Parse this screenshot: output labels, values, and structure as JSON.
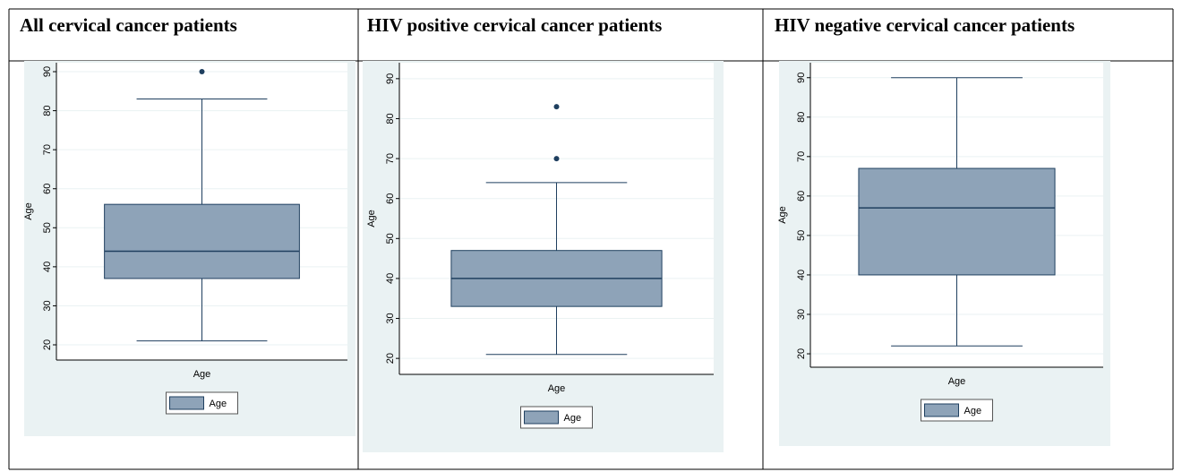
{
  "chart_data": [
    {
      "type": "box",
      "title": "All cervical cancer patients",
      "ylabel": "Age",
      "categories": [
        "Age"
      ],
      "ylim": [
        16.1,
        92.3
      ],
      "yticks": [
        20,
        30,
        40,
        50,
        60,
        70,
        80,
        90
      ],
      "grid": true,
      "legend": "bottom",
      "series": [
        {
          "name": "Age",
          "color": "#8ea3b8",
          "whisker_low": 21,
          "q1": 37,
          "median": 44,
          "q3": 56,
          "whisker_high": 83,
          "outliers": [
            90
          ]
        }
      ]
    },
    {
      "type": "box",
      "title": "HIV positive cervical cancer patients",
      "ylabel": "Age",
      "categories": [
        "Age"
      ],
      "ylim": [
        16,
        94
      ],
      "yticks": [
        20,
        30,
        40,
        50,
        60,
        70,
        80,
        90
      ],
      "grid": true,
      "legend": "bottom",
      "series": [
        {
          "name": "Age",
          "color": "#8ea3b8",
          "whisker_low": 21,
          "q1": 33,
          "median": 40,
          "q3": 47,
          "whisker_high": 64,
          "outliers": [
            70,
            83
          ]
        }
      ]
    },
    {
      "type": "box",
      "title": "HIV negative cervical cancer patients",
      "ylabel": "Age",
      "categories": [
        "Age"
      ],
      "ylim": [
        16.6,
        93.8
      ],
      "yticks": [
        20,
        30,
        40,
        50,
        60,
        70,
        80,
        90
      ],
      "grid": true,
      "legend": "bottom",
      "series": [
        {
          "name": "Age",
          "color": "#8ea3b8",
          "whisker_low": 22,
          "q1": 40,
          "median": 57,
          "q3": 67,
          "whisker_high": 90,
          "outliers": []
        }
      ]
    }
  ]
}
